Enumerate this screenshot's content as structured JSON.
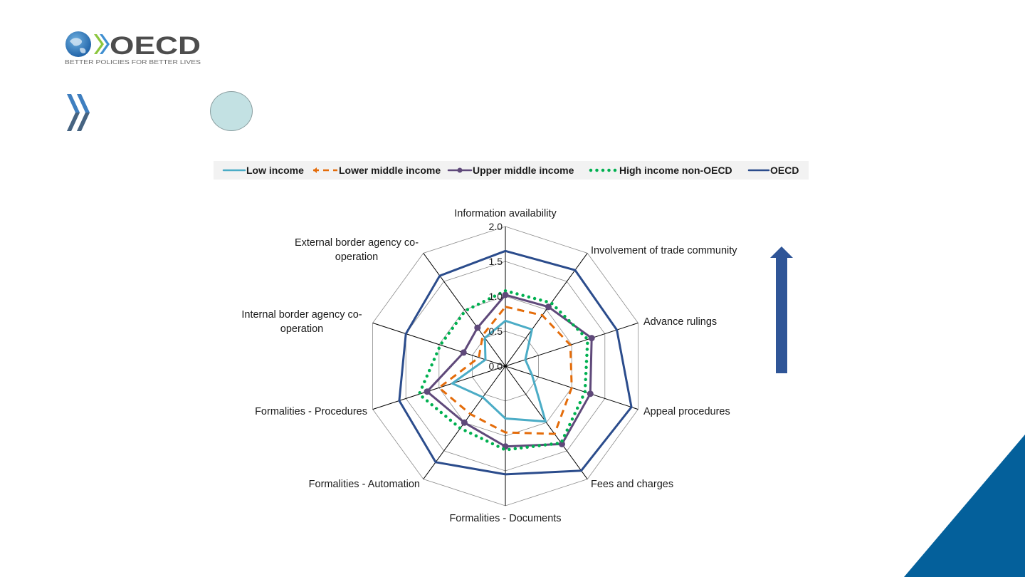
{
  "logo": {
    "name": "OECD",
    "tagline": "BETTER POLICIES FOR BETTER LIVES"
  },
  "colors": {
    "low": "#4bacc6",
    "lower_middle": "#e46c0a",
    "upper_middle": "#5f497a",
    "high_non_oecd": "#00b050",
    "oecd": "#2b4c8c",
    "arrow": "#2f5597",
    "corner": "#04609b",
    "circle": "#c3e1e3"
  },
  "chart_data": {
    "type": "radar",
    "categories": [
      "Information availability",
      "Involvement of trade community",
      "Advance rulings",
      "Appeal procedures",
      "Fees and charges",
      "Formalities - Documents",
      "Formalities - Automation",
      "Formalities - Procedures",
      "Internal border agency co-operation",
      "External border agency co-operation"
    ],
    "category_labels": [
      [
        "Information availability"
      ],
      [
        "Involvement of trade community"
      ],
      [
        "Advance rulings"
      ],
      [
        "Appeal procedures"
      ],
      [
        "Fees and charges"
      ],
      [
        "Formalities - Documents"
      ],
      [
        "Formalities - Automation"
      ],
      [
        "Formalities - Procedures"
      ],
      [
        "Internal border agency co-",
        "operation"
      ],
      [
        "External border agency co-",
        "operation"
      ]
    ],
    "ticks": [
      "0.0",
      "0.5",
      "1.0",
      "1.5",
      "2.0"
    ],
    "rlim": [
      0,
      2
    ],
    "grid": true,
    "legend_position": "top",
    "series": [
      {
        "name": "Low income",
        "key": "low",
        "dash": "solid",
        "values": [
          0.65,
          0.65,
          0.3,
          0.4,
          0.98,
          0.75,
          0.55,
          0.8,
          0.3,
          0.5
        ]
      },
      {
        "name": "Lower middle income",
        "key": "lower_middle",
        "dash": "dash",
        "values": [
          0.85,
          0.9,
          0.98,
          1.0,
          1.2,
          0.95,
          0.85,
          1.0,
          0.4,
          0.55
        ]
      },
      {
        "name": "Upper middle income",
        "key": "upper_middle",
        "dash": "solid",
        "values": [
          1.02,
          1.05,
          1.3,
          1.28,
          1.38,
          1.15,
          1.0,
          1.18,
          0.63,
          0.68
        ]
      },
      {
        "name": "High income non-OECD",
        "key": "high_non_oecd",
        "dash": "dot",
        "values": [
          1.08,
          1.12,
          1.24,
          1.2,
          1.36,
          1.2,
          1.1,
          1.3,
          0.98,
          0.98
        ]
      },
      {
        "name": "OECD",
        "key": "oecd",
        "dash": "solid",
        "values": [
          1.65,
          1.7,
          1.68,
          1.9,
          1.85,
          1.55,
          1.7,
          1.6,
          1.5,
          1.6
        ]
      }
    ]
  }
}
